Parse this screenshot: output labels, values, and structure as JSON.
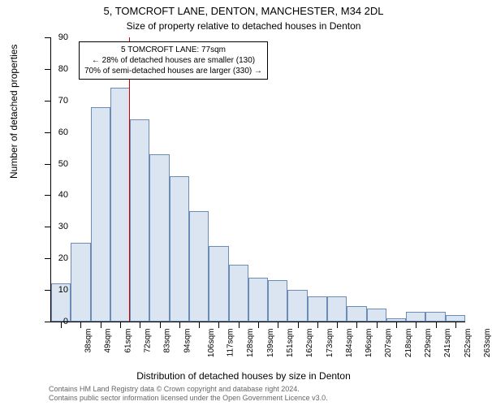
{
  "title": "5, TOMCROFT LANE, DENTON, MANCHESTER, M34 2DL",
  "subtitle": "Size of property relative to detached houses in Denton",
  "ylabel": "Number of detached properties",
  "xlabel": "Distribution of detached houses by size in Denton",
  "chart": {
    "type": "histogram",
    "ylim": [
      0,
      90
    ],
    "ytick_step": 10,
    "yticks": [
      0,
      10,
      20,
      30,
      40,
      50,
      60,
      70,
      80,
      90
    ],
    "bar_fill": "#dbe5f1",
    "bar_border": "#6b8db5",
    "marker_color": "#cc0000",
    "marker_value": 77,
    "background": "#ffffff",
    "bars": [
      {
        "label": "38sqm",
        "value": 12
      },
      {
        "label": "49sqm",
        "value": 25
      },
      {
        "label": "61sqm",
        "value": 68
      },
      {
        "label": "72sqm",
        "value": 74
      },
      {
        "label": "83sqm",
        "value": 64
      },
      {
        "label": "94sqm",
        "value": 53
      },
      {
        "label": "106sqm",
        "value": 46
      },
      {
        "label": "117sqm",
        "value": 35
      },
      {
        "label": "128sqm",
        "value": 24
      },
      {
        "label": "139sqm",
        "value": 18
      },
      {
        "label": "151sqm",
        "value": 14
      },
      {
        "label": "162sqm",
        "value": 13
      },
      {
        "label": "173sqm",
        "value": 10
      },
      {
        "label": "184sqm",
        "value": 8
      },
      {
        "label": "196sqm",
        "value": 8
      },
      {
        "label": "207sqm",
        "value": 5
      },
      {
        "label": "218sqm",
        "value": 4
      },
      {
        "label": "229sqm",
        "value": 1
      },
      {
        "label": "241sqm",
        "value": 3
      },
      {
        "label": "252sqm",
        "value": 3
      },
      {
        "label": "263sqm",
        "value": 2
      }
    ]
  },
  "infobox": {
    "line1": "5 TOMCROFT LANE: 77sqm",
    "line2": "← 28% of detached houses are smaller (130)",
    "line3": "70% of semi-detached houses are larger (330) →"
  },
  "footer": {
    "line1": "Contains HM Land Registry data © Crown copyright and database right 2024.",
    "line2": "Contains public sector information licensed under the Open Government Licence v3.0."
  }
}
